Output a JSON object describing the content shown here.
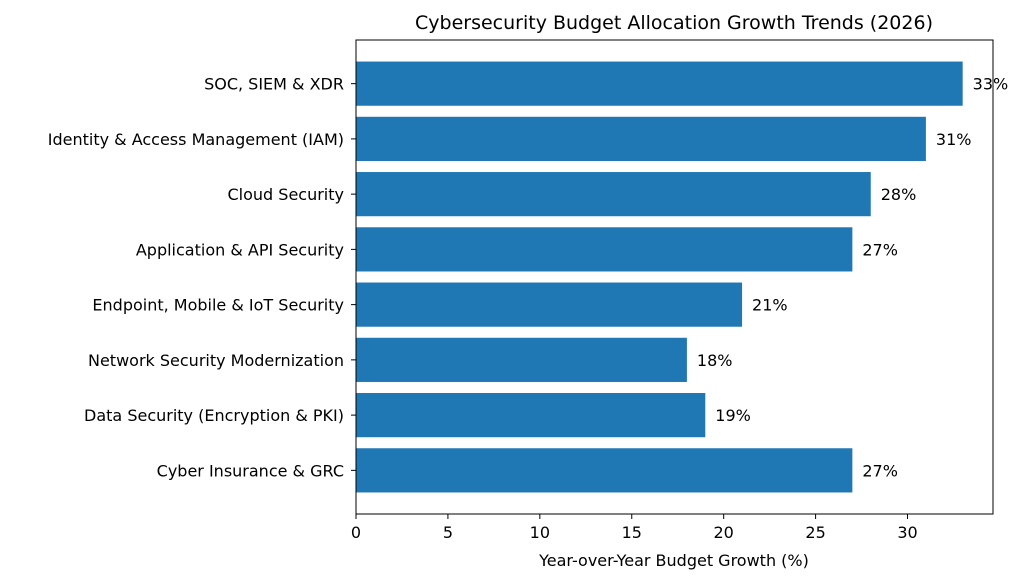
{
  "chart_data": {
    "type": "bar",
    "orientation": "horizontal",
    "title": "Cybersecurity Budget Allocation Growth Trends (2026)",
    "xlabel": "Year-over-Year Budget Growth (%)",
    "ylabel": "",
    "categories": [
      "SOC, SIEM & XDR",
      "Identity & Access Management (IAM)",
      "Cloud Security",
      "Application & API Security",
      "Endpoint, Mobile & IoT Security",
      "Network Security Modernization",
      "Data Security (Encryption & PKI)",
      "Cyber Insurance & GRC"
    ],
    "values": [
      33,
      31,
      28,
      27,
      21,
      18,
      19,
      27
    ],
    "data_labels": [
      "33%",
      "31%",
      "28%",
      "27%",
      "21%",
      "18%",
      "19%",
      "27%"
    ],
    "xlim": [
      0,
      34.65
    ],
    "xticks": [
      0,
      5,
      10,
      15,
      20,
      25,
      30
    ],
    "xtick_labels": [
      "0",
      "5",
      "10",
      "15",
      "20",
      "25",
      "30"
    ],
    "grid": false,
    "color": "#1f77b4"
  }
}
